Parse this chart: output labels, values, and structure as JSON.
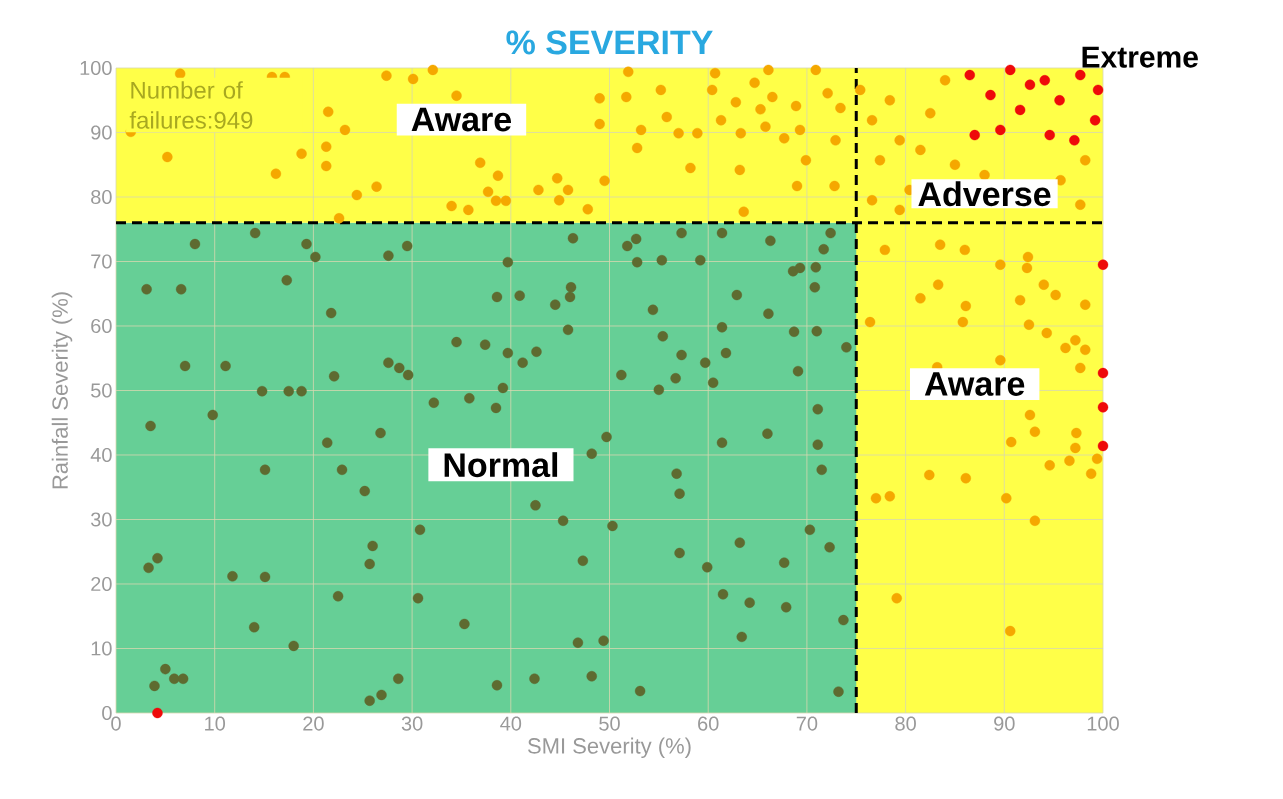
{
  "chart_data": {
    "type": "scatter",
    "title": "% SEVERITY",
    "xlabel": "SMI Severity (%)",
    "ylabel": "Rainfall Severity (%)",
    "xlim": [
      0,
      100
    ],
    "ylim": [
      0,
      100
    ],
    "xticks": [
      0,
      10,
      20,
      30,
      40,
      50,
      60,
      70,
      80,
      90,
      100
    ],
    "yticks": [
      0,
      10,
      20,
      30,
      40,
      50,
      60,
      70,
      80,
      90,
      100
    ],
    "grid": true,
    "marker": "circle",
    "bands": [
      {
        "axis": "y",
        "from": 0,
        "to": 76,
        "color": "#66cf96"
      },
      {
        "axis": "x",
        "from": 75,
        "to": 100,
        "color": "#ffff48"
      },
      {
        "axis": "y",
        "from": 76,
        "to": 100,
        "color": "#ffff48"
      }
    ],
    "ref_lines": [
      {
        "axis": "x",
        "value": 75,
        "line_style": "dashed",
        "color": "#000000"
      },
      {
        "axis": "y",
        "value": 76,
        "line_style": "dashed",
        "color": "#000000"
      }
    ],
    "annotations": [
      "Number of failures:949",
      "Aware",
      "Aware",
      "Normal",
      "Adverse",
      "Extreme"
    ],
    "series": [
      {
        "color": "#5e6b30",
        "x": [
          3.1,
          6.6,
          8,
          14.1,
          19.3,
          17.3,
          7,
          11.1,
          14.8,
          9.8,
          17.5,
          18.8,
          3.5,
          15.1,
          14,
          3.3,
          4.2,
          5,
          5.9,
          6.8,
          3.9,
          11.8,
          15.1,
          18,
          22.5,
          21.4,
          22.9,
          21.8,
          22.1,
          20.2,
          25.2,
          25.7,
          26,
          25.7,
          26.9,
          27.6,
          29.5,
          27.6,
          28.7,
          29.6,
          26.8,
          28.6,
          30.8,
          30.6,
          32.2,
          34.5,
          35.8,
          35.3,
          37.4,
          38.6,
          39.7,
          39.7,
          39.2,
          38.5,
          38.6,
          40.9,
          41.2,
          42.6,
          42.5,
          42.4,
          44.5,
          46,
          46.1,
          46.3,
          45.8,
          45.3,
          47.3,
          46.8,
          48.2,
          48.2,
          49.4,
          49.7,
          50.3,
          51.2,
          51.8,
          52.7,
          52.8,
          53.1,
          55.3,
          55.4,
          54.4,
          55,
          56.8,
          57.1,
          57.1,
          56.7,
          57.3,
          57.3,
          59.2,
          59.7,
          59.9,
          60.5,
          61.4,
          61.8,
          61.4,
          61.4,
          61.5,
          62.9,
          63.4,
          64.2,
          63.2,
          66,
          66.1,
          66.3,
          67.9,
          67.7,
          68.6,
          68.7,
          69.1,
          69.3,
          70.9,
          70.8,
          71.7,
          70.3,
          71,
          71.1,
          71.1,
          71.5,
          72.3,
          72.4,
          73.2,
          73.7,
          74
        ],
        "values": [
          65.7,
          65.7,
          72.7,
          74.4,
          72.7,
          67.1,
          53.8,
          53.8,
          49.9,
          46.2,
          49.9,
          49.9,
          44.5,
          37.7,
          13.3,
          22.5,
          24,
          6.8,
          5.3,
          5.3,
          4.2,
          21.2,
          21.1,
          10.4,
          18.1,
          41.9,
          37.7,
          62,
          52.2,
          70.7,
          34.4,
          23.1,
          25.9,
          1.9,
          2.8,
          70.9,
          72.4,
          54.3,
          53.5,
          52.4,
          43.4,
          5.3,
          28.4,
          17.8,
          48.1,
          57.5,
          48.8,
          13.8,
          57.1,
          64.5,
          69.9,
          55.8,
          50.4,
          47.3,
          4.3,
          64.7,
          54.3,
          56,
          32.2,
          5.3,
          63.3,
          64.5,
          66,
          73.6,
          59.4,
          29.8,
          23.6,
          10.9,
          5.7,
          40.2,
          11.2,
          42.8,
          29,
          52.4,
          72.4,
          73.5,
          69.9,
          3.4,
          70.2,
          58.4,
          62.5,
          50.1,
          37.1,
          34,
          24.8,
          51.9,
          55.5,
          74.4,
          70.2,
          54.3,
          22.6,
          51.2,
          74.4,
          55.8,
          59.8,
          41.9,
          18.4,
          64.8,
          11.8,
          17.1,
          26.4,
          43.3,
          61.9,
          73.2,
          16.4,
          23.3,
          68.5,
          59.1,
          53,
          69,
          69.1,
          66,
          71.9,
          28.4,
          59.2,
          47.1,
          41.6,
          37.7,
          25.7,
          74.4,
          3.3,
          14.4,
          56.7
        ]
      },
      {
        "color": "#f5a800",
        "x": [
          6.5,
          1.5,
          5.2,
          15.8,
          17.1,
          16.2,
          18.8,
          21.3,
          21.5,
          23.2,
          21.3,
          22.6,
          24.4,
          26.4,
          27.4,
          30.1,
          32.1,
          34.5,
          34,
          35.7,
          36.9,
          38.5,
          38.7,
          37.7,
          39.5,
          42.8,
          44.7,
          44.9,
          45.8,
          47.8,
          49.5,
          49,
          49,
          51.7,
          51.9,
          52.8,
          53.2,
          55.8,
          55.2,
          57,
          58.2,
          58.9,
          60.7,
          60.4,
          61.3,
          62.8,
          63.3,
          63.2,
          63.6,
          64.7,
          65.3,
          65.8,
          66.1,
          66.5,
          67.7,
          69,
          68.9,
          69.3,
          69.9,
          70.9,
          72.1,
          72.9,
          72.8,
          73.4,
          75.4,
          76.6,
          77.4,
          79.4,
          80.4,
          82.5,
          84,
          85,
          76.6,
          88,
          95.7,
          98.2,
          97.7,
          79.4,
          78.4,
          81.5,
          76.4,
          77.9,
          81.5,
          83.3,
          83.5,
          86,
          86.1,
          85.8,
          89.6,
          92.3,
          92.4,
          91.6,
          94,
          95.2,
          98.2,
          96.2,
          97.7,
          98.2,
          97.2,
          94.3,
          92.5,
          89.6,
          83.2,
          92.6,
          93.1,
          90.7,
          94.6,
          96.6,
          99.4,
          98.8,
          77,
          78.4,
          82.4,
          86.1,
          90.2,
          93.1,
          79.1,
          90.6,
          97.3,
          97.2
        ],
        "values": [
          99.1,
          90.1,
          86.2,
          98.6,
          98.6,
          83.6,
          86.7,
          84.8,
          93.2,
          90.4,
          87.8,
          76.7,
          80.3,
          81.6,
          98.8,
          98.3,
          99.7,
          95.7,
          78.6,
          78,
          85.3,
          79.4,
          83.3,
          80.8,
          79.4,
          81.1,
          82.9,
          79.5,
          81.1,
          78.1,
          82.5,
          91.3,
          95.3,
          95.5,
          99.4,
          87.6,
          90.4,
          92.4,
          96.6,
          89.9,
          84.5,
          89.9,
          99.2,
          96.6,
          91.9,
          94.7,
          89.9,
          84.2,
          77.7,
          97.7,
          93.6,
          90.9,
          99.7,
          95.5,
          89.1,
          81.7,
          94.1,
          90.4,
          85.7,
          99.7,
          96.1,
          88.8,
          81.7,
          93.8,
          96.6,
          91.9,
          85.7,
          88.8,
          81.1,
          93,
          98.1,
          85,
          79.5,
          83.4,
          82.6,
          85.7,
          78.8,
          78,
          95,
          87.3,
          60.6,
          71.8,
          64.3,
          66.4,
          72.6,
          71.8,
          63.1,
          60.6,
          69.5,
          69,
          70.7,
          64,
          66.4,
          64.8,
          63.3,
          56.6,
          53.5,
          56.3,
          57.8,
          58.9,
          60.2,
          54.7,
          53.6,
          46.2,
          43.6,
          42,
          38.4,
          39.1,
          39.4,
          37.1,
          33.3,
          33.6,
          36.9,
          36.4,
          33.3,
          29.8,
          17.8,
          12.7,
          43.4,
          41.1
        ]
      },
      {
        "color": "#ee0a0a",
        "x": [
          86.5,
          88.6,
          90.6,
          91.6,
          94.1,
          95.6,
          97.7,
          99.2,
          89.6,
          94.6,
          97.1,
          87,
          92.6,
          99.5,
          4.2,
          100,
          100,
          100,
          100
        ],
        "values": [
          98.9,
          95.8,
          99.7,
          93.5,
          98.1,
          95,
          98.9,
          91.9,
          90.4,
          89.6,
          88.8,
          89.6,
          97.4,
          96.6,
          0,
          69.5,
          52.7,
          47.4,
          41.4
        ]
      }
    ]
  }
}
